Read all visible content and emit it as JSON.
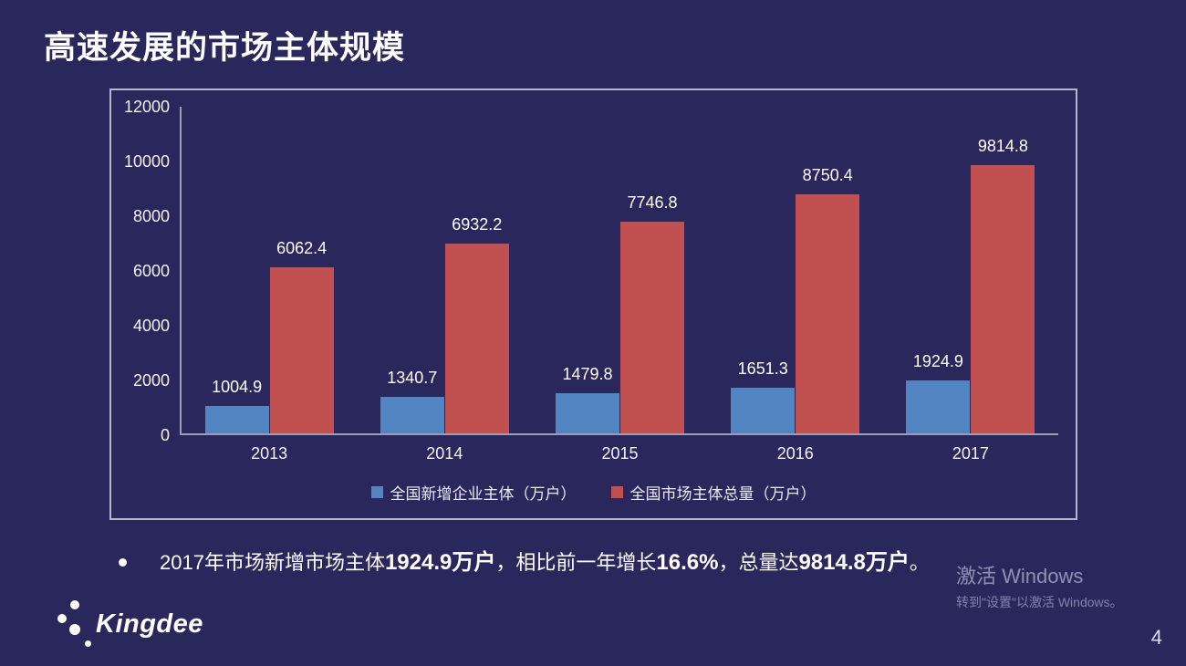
{
  "slide": {
    "title": "高速发展的市场主体规模",
    "page_number": "4"
  },
  "colors": {
    "background": "#2A275C",
    "bar_blue": "#5284C1",
    "bar_red": "#C15150",
    "highlight_orange": "#F7A12F",
    "chart_border": "#CDD0E0",
    "axis_line": "#9B9DB4"
  },
  "chart_data": {
    "type": "bar",
    "title": "",
    "categories": [
      "2013",
      "2014",
      "2015",
      "2016",
      "2017"
    ],
    "series": [
      {
        "name": "全国新增企业主体（万户）",
        "color": "#5284C1",
        "values": [
          1004.9,
          1340.7,
          1479.8,
          1651.3,
          1924.9
        ]
      },
      {
        "name": "全国市场主体总量（万户）",
        "color": "#C15150",
        "values": [
          6062.4,
          6932.2,
          7746.8,
          8750.4,
          9814.8
        ]
      }
    ],
    "xlabel": "",
    "ylabel": "",
    "ylim": [
      0,
      12000
    ],
    "yticks": [
      0,
      2000,
      4000,
      6000,
      8000,
      10000,
      12000
    ],
    "grid": false,
    "legend_position": "bottom",
    "data_labels": true
  },
  "bullet": {
    "marker": "●",
    "segments": [
      {
        "text": "2017年市场新增市场主体",
        "highlight": false
      },
      {
        "text": "1924.9万户",
        "highlight": true
      },
      {
        "text": "，相比前一年增长",
        "highlight": false
      },
      {
        "text": "16.6%",
        "highlight": true
      },
      {
        "text": "，总量达",
        "highlight": false
      },
      {
        "text": "9814.8万户",
        "highlight": true
      },
      {
        "text": "。",
        "highlight": false
      }
    ]
  },
  "logo": {
    "text": "Kingdee"
  },
  "watermark": {
    "line1": "激活 Windows",
    "line2": "转到\"设置\"以激活 Windows。"
  }
}
